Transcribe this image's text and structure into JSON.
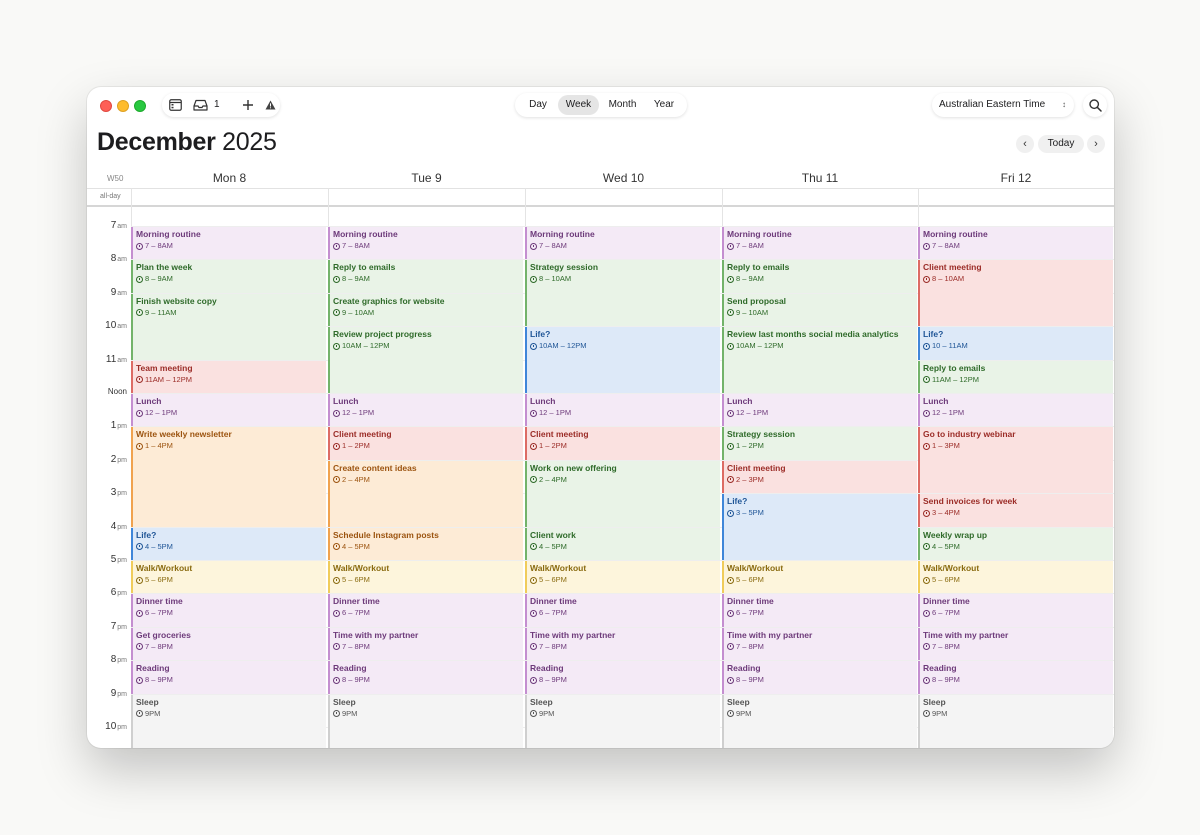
{
  "toolbar": {
    "inbox_count": "1",
    "view_tabs": [
      "Day",
      "Week",
      "Month",
      "Year"
    ],
    "active_view": "Week",
    "timezone": "Australian Eastern Time",
    "today_label": "Today"
  },
  "header": {
    "month": "December",
    "year": "2025",
    "week_number": "W50",
    "allday_label": "all-day"
  },
  "days": [
    "Mon 8",
    "Tue 9",
    "Wed 10",
    "Thu 11",
    "Fri 12"
  ],
  "hours": [
    {
      "num": "7",
      "ap": "am"
    },
    {
      "num": "8",
      "ap": "am"
    },
    {
      "num": "9",
      "ap": "am"
    },
    {
      "num": "10",
      "ap": "am"
    },
    {
      "num": "11",
      "ap": "am"
    },
    {
      "num": "Noon",
      "ap": ""
    },
    {
      "num": "1",
      "ap": "pm"
    },
    {
      "num": "2",
      "ap": "pm"
    },
    {
      "num": "3",
      "ap": "pm"
    },
    {
      "num": "4",
      "ap": "pm"
    },
    {
      "num": "5",
      "ap": "pm"
    },
    {
      "num": "6",
      "ap": "pm"
    },
    {
      "num": "7",
      "ap": "pm"
    },
    {
      "num": "8",
      "ap": "pm"
    },
    {
      "num": "9",
      "ap": "pm"
    },
    {
      "num": "10",
      "ap": "pm"
    }
  ],
  "colors": {
    "purple": {
      "bg": "#f4eaf6",
      "bar": "#c48ed0",
      "text": "#6d3a7a"
    },
    "green": {
      "bg": "#e9f3e7",
      "bar": "#73b36a",
      "text": "#2e6a29"
    },
    "red": {
      "bg": "#fae1e0",
      "bar": "#dd6b64",
      "text": "#9b2c27"
    },
    "orange": {
      "bg": "#fdebd6",
      "bar": "#f0a24e",
      "text": "#9c5410"
    },
    "blue": {
      "bg": "#dde9f8",
      "bar": "#3f86d9",
      "text": "#1f5596"
    },
    "yellow": {
      "bg": "#fdf5dc",
      "bar": "#f0cc5a",
      "text": "#8a6b10"
    },
    "gray": {
      "bg": "#f4f4f4",
      "bar": "#cfcfcf",
      "text": "#555555"
    }
  },
  "events": [
    {
      "day": 0,
      "start": 7,
      "end": 8,
      "title": "Morning routine",
      "time": "7 – 8AM",
      "color": "purple"
    },
    {
      "day": 0,
      "start": 8,
      "end": 9,
      "title": "Plan the week",
      "time": "8 – 9AM",
      "color": "green"
    },
    {
      "day": 0,
      "start": 9,
      "end": 11,
      "title": "Finish website copy",
      "time": "9 – 11AM",
      "color": "green"
    },
    {
      "day": 0,
      "start": 11,
      "end": 12,
      "title": "Team meeting",
      "time": "11AM – 12PM",
      "color": "red"
    },
    {
      "day": 0,
      "start": 12,
      "end": 13,
      "title": "Lunch",
      "time": "12 – 1PM",
      "color": "purple"
    },
    {
      "day": 0,
      "start": 13,
      "end": 16,
      "title": "Write weekly newsletter",
      "time": "1 – 4PM",
      "color": "orange"
    },
    {
      "day": 0,
      "start": 16,
      "end": 17,
      "title": "Life?",
      "time": "4 – 5PM",
      "color": "blue"
    },
    {
      "day": 0,
      "start": 17,
      "end": 18,
      "title": "Walk/Workout",
      "time": "5 – 6PM",
      "color": "yellow"
    },
    {
      "day": 0,
      "start": 18,
      "end": 19,
      "title": "Dinner time",
      "time": "6 – 7PM",
      "color": "purple"
    },
    {
      "day": 0,
      "start": 19,
      "end": 20,
      "title": "Get groceries",
      "time": "7 – 8PM",
      "color": "purple"
    },
    {
      "day": 0,
      "start": 20,
      "end": 21,
      "title": "Reading",
      "time": "8 – 9PM",
      "color": "purple"
    },
    {
      "day": 0,
      "start": 21,
      "end": 22.8,
      "title": "Sleep",
      "time": "9PM",
      "color": "gray"
    },
    {
      "day": 1,
      "start": 7,
      "end": 8,
      "title": "Morning routine",
      "time": "7 – 8AM",
      "color": "purple"
    },
    {
      "day": 1,
      "start": 8,
      "end": 9,
      "title": "Reply to emails",
      "time": "8 – 9AM",
      "color": "green"
    },
    {
      "day": 1,
      "start": 9,
      "end": 10,
      "title": "Create graphics for website",
      "time": "9 – 10AM",
      "color": "green"
    },
    {
      "day": 1,
      "start": 10,
      "end": 12,
      "title": "Review project progress",
      "time": "10AM – 12PM",
      "color": "green"
    },
    {
      "day": 1,
      "start": 12,
      "end": 13,
      "title": "Lunch",
      "time": "12 – 1PM",
      "color": "purple"
    },
    {
      "day": 1,
      "start": 13,
      "end": 14,
      "title": "Client meeting",
      "time": "1 – 2PM",
      "color": "red"
    },
    {
      "day": 1,
      "start": 14,
      "end": 16,
      "title": "Create content ideas",
      "time": "2 – 4PM",
      "color": "orange"
    },
    {
      "day": 1,
      "start": 16,
      "end": 17,
      "title": "Schedule Instagram posts",
      "time": "4 – 5PM",
      "color": "orange"
    },
    {
      "day": 1,
      "start": 17,
      "end": 18,
      "title": "Walk/Workout",
      "time": "5 – 6PM",
      "color": "yellow"
    },
    {
      "day": 1,
      "start": 18,
      "end": 19,
      "title": "Dinner time",
      "time": "6 – 7PM",
      "color": "purple"
    },
    {
      "day": 1,
      "start": 19,
      "end": 20,
      "title": "Time with my partner",
      "time": "7 – 8PM",
      "color": "purple"
    },
    {
      "day": 1,
      "start": 20,
      "end": 21,
      "title": "Reading",
      "time": "8 – 9PM",
      "color": "purple"
    },
    {
      "day": 1,
      "start": 21,
      "end": 22.8,
      "title": "Sleep",
      "time": "9PM",
      "color": "gray"
    },
    {
      "day": 2,
      "start": 7,
      "end": 8,
      "title": "Morning routine",
      "time": "7 – 8AM",
      "color": "purple"
    },
    {
      "day": 2,
      "start": 8,
      "end": 10,
      "title": "Strategy session",
      "time": "8 – 10AM",
      "color": "green"
    },
    {
      "day": 2,
      "start": 10,
      "end": 12,
      "title": "Life?",
      "time": "10AM – 12PM",
      "color": "blue"
    },
    {
      "day": 2,
      "start": 12,
      "end": 13,
      "title": "Lunch",
      "time": "12 – 1PM",
      "color": "purple"
    },
    {
      "day": 2,
      "start": 13,
      "end": 14,
      "title": "Client meeting",
      "time": "1 – 2PM",
      "color": "red"
    },
    {
      "day": 2,
      "start": 14,
      "end": 16,
      "title": "Work on new offering",
      "time": "2 – 4PM",
      "color": "green"
    },
    {
      "day": 2,
      "start": 16,
      "end": 17,
      "title": "Client work",
      "time": "4 – 5PM",
      "color": "green"
    },
    {
      "day": 2,
      "start": 17,
      "end": 18,
      "title": "Walk/Workout",
      "time": "5 – 6PM",
      "color": "yellow"
    },
    {
      "day": 2,
      "start": 18,
      "end": 19,
      "title": "Dinner time",
      "time": "6 – 7PM",
      "color": "purple"
    },
    {
      "day": 2,
      "start": 19,
      "end": 20,
      "title": "Time with my partner",
      "time": "7 – 8PM",
      "color": "purple"
    },
    {
      "day": 2,
      "start": 20,
      "end": 21,
      "title": "Reading",
      "time": "8 – 9PM",
      "color": "purple"
    },
    {
      "day": 2,
      "start": 21,
      "end": 22.8,
      "title": "Sleep",
      "time": "9PM",
      "color": "gray"
    },
    {
      "day": 3,
      "start": 7,
      "end": 8,
      "title": "Morning routine",
      "time": "7 – 8AM",
      "color": "purple"
    },
    {
      "day": 3,
      "start": 8,
      "end": 9,
      "title": "Reply to emails",
      "time": "8 – 9AM",
      "color": "green"
    },
    {
      "day": 3,
      "start": 9,
      "end": 10,
      "title": "Send proposal",
      "time": "9 – 10AM",
      "color": "green"
    },
    {
      "day": 3,
      "start": 10,
      "end": 12,
      "title": "Review last months social media analytics",
      "time": "10AM – 12PM",
      "color": "green"
    },
    {
      "day": 3,
      "start": 12,
      "end": 13,
      "title": "Lunch",
      "time": "12 – 1PM",
      "color": "purple"
    },
    {
      "day": 3,
      "start": 13,
      "end": 14,
      "title": "Strategy session",
      "time": "1 – 2PM",
      "color": "green"
    },
    {
      "day": 3,
      "start": 14,
      "end": 15,
      "title": "Client meeting",
      "time": "2 – 3PM",
      "color": "red"
    },
    {
      "day": 3,
      "start": 15,
      "end": 17,
      "title": "Life?",
      "time": "3 – 5PM",
      "color": "blue"
    },
    {
      "day": 3,
      "start": 17,
      "end": 18,
      "title": "Walk/Workout",
      "time": "5 – 6PM",
      "color": "yellow"
    },
    {
      "day": 3,
      "start": 18,
      "end": 19,
      "title": "Dinner time",
      "time": "6 – 7PM",
      "color": "purple"
    },
    {
      "day": 3,
      "start": 19,
      "end": 20,
      "title": "Time with my partner",
      "time": "7 – 8PM",
      "color": "purple"
    },
    {
      "day": 3,
      "start": 20,
      "end": 21,
      "title": "Reading",
      "time": "8 – 9PM",
      "color": "purple"
    },
    {
      "day": 3,
      "start": 21,
      "end": 22.8,
      "title": "Sleep",
      "time": "9PM",
      "color": "gray"
    },
    {
      "day": 4,
      "start": 7,
      "end": 8,
      "title": "Morning routine",
      "time": "7 – 8AM",
      "color": "purple"
    },
    {
      "day": 4,
      "start": 8,
      "end": 10,
      "title": "Client meeting",
      "time": "8 – 10AM",
      "color": "red"
    },
    {
      "day": 4,
      "start": 10,
      "end": 11,
      "title": "Life?",
      "time": "10 – 11AM",
      "color": "blue"
    },
    {
      "day": 4,
      "start": 11,
      "end": 12,
      "title": "Reply to emails",
      "time": "11AM – 12PM",
      "color": "green"
    },
    {
      "day": 4,
      "start": 12,
      "end": 13,
      "title": "Lunch",
      "time": "12 – 1PM",
      "color": "purple"
    },
    {
      "day": 4,
      "start": 13,
      "end": 15,
      "title": "Go to industry webinar",
      "time": "1 – 3PM",
      "color": "red"
    },
    {
      "day": 4,
      "start": 15,
      "end": 16,
      "title": "Send invoices for week",
      "time": "3 – 4PM",
      "color": "red"
    },
    {
      "day": 4,
      "start": 16,
      "end": 17,
      "title": "Weekly wrap up",
      "time": "4 – 5PM",
      "color": "green"
    },
    {
      "day": 4,
      "start": 17,
      "end": 18,
      "title": "Walk/Workout",
      "time": "5 – 6PM",
      "color": "yellow"
    },
    {
      "day": 4,
      "start": 18,
      "end": 19,
      "title": "Dinner time",
      "time": "6 – 7PM",
      "color": "purple"
    },
    {
      "day": 4,
      "start": 19,
      "end": 20,
      "title": "Time with my partner",
      "time": "7 – 8PM",
      "color": "purple"
    },
    {
      "day": 4,
      "start": 20,
      "end": 21,
      "title": "Reading",
      "time": "8 – 9PM",
      "color": "purple"
    },
    {
      "day": 4,
      "start": 21,
      "end": 22.8,
      "title": "Sleep",
      "time": "9PM",
      "color": "gray"
    }
  ]
}
